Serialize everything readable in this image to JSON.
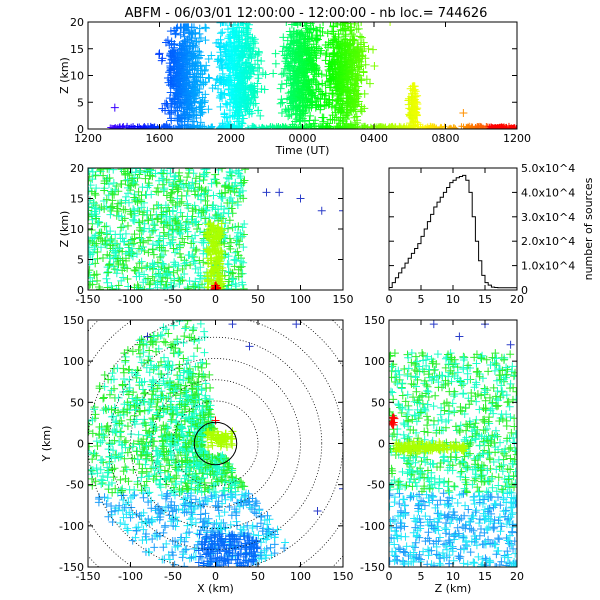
{
  "chart_data": [
    {
      "id": "time-height",
      "type": "scatter",
      "title": "ABFM - 06/03/01 12:00:00 - 12:00:00 - nb loc.= 744626",
      "xlabel": "Time (UT)",
      "ylabel": "Z (km)",
      "xlim": [
        1200,
        3600
      ],
      "ylim": [
        0,
        20
      ],
      "x_tick_labels": [
        "1200",
        "1600",
        "2000",
        "0000",
        "0400",
        "0800",
        "1200"
      ],
      "y_ticks": [
        0,
        5,
        10,
        15,
        20
      ],
      "color_scale": "rainbow by time",
      "clusters": [
        {
          "x": 1740,
          "ymax": 19
        },
        {
          "x": 2040,
          "ymax": 20
        },
        {
          "x": 2400,
          "ymax": 20
        },
        {
          "x": 2640,
          "ymax": 20
        },
        {
          "x": 3020,
          "ymax": 8
        }
      ]
    },
    {
      "id": "x-z",
      "type": "scatter",
      "xlabel": "",
      "ylabel": "Z (km)",
      "xlim": [
        -150,
        150
      ],
      "ylim": [
        0,
        20
      ],
      "x_ticks": [
        -150,
        -100,
        -50,
        0,
        50,
        100,
        150
      ],
      "y_ticks": [
        0,
        5,
        10,
        15,
        20
      ]
    },
    {
      "id": "altitude-histogram",
      "type": "line",
      "xlabel": "",
      "ylabel": "number of sources",
      "xlim": [
        0,
        20
      ],
      "ylim": [
        0,
        50000
      ],
      "x_ticks": [
        0,
        5,
        10,
        15,
        20
      ],
      "y_tick_labels": [
        "0",
        "1.0x10^4",
        "2.0x10^4",
        "3.0x10^4",
        "4.0x10^4",
        "5.0x10^4"
      ],
      "x": [
        0,
        0.5,
        1,
        1.5,
        2,
        2.5,
        3,
        3.5,
        4,
        4.5,
        5,
        5.5,
        6,
        6.5,
        7,
        7.5,
        8,
        8.5,
        9,
        9.5,
        10,
        10.5,
        11,
        11.5,
        12,
        12.5,
        13,
        13.5,
        14,
        14.5,
        15,
        15.5,
        16,
        16.5,
        17,
        17.5,
        18,
        18.5,
        19,
        19.5,
        20
      ],
      "values": [
        1000,
        3000,
        5000,
        7000,
        9000,
        11000,
        13000,
        15000,
        17000,
        19000,
        22000,
        25000,
        28000,
        31000,
        34000,
        36000,
        38000,
        40000,
        42000,
        44000,
        45000,
        46000,
        46500,
        47000,
        45000,
        40000,
        30000,
        20000,
        12000,
        6000,
        3000,
        2000,
        1200,
        1000,
        900,
        900,
        900,
        900,
        900,
        900,
        900
      ]
    },
    {
      "id": "plan-view",
      "type": "scatter",
      "xlabel": "X (km)",
      "ylabel": "Y (km)",
      "xlim": [
        -150,
        150
      ],
      "ylim": [
        -150,
        150
      ],
      "x_ticks": [
        -150,
        -100,
        -50,
        0,
        50,
        100,
        150
      ],
      "y_ticks": [
        -150,
        -100,
        -50,
        0,
        50,
        100,
        150
      ],
      "range_rings_km": [
        25,
        50,
        75,
        100,
        125,
        150,
        175,
        200
      ]
    },
    {
      "id": "z-y",
      "type": "scatter",
      "xlabel": "Z (km)",
      "ylabel": "",
      "xlim": [
        0,
        20
      ],
      "ylim": [
        -150,
        150
      ],
      "x_ticks": [
        0,
        5,
        10,
        15,
        20
      ],
      "y_ticks": [
        -150,
        -100,
        -50,
        0,
        50,
        100,
        150
      ]
    }
  ]
}
